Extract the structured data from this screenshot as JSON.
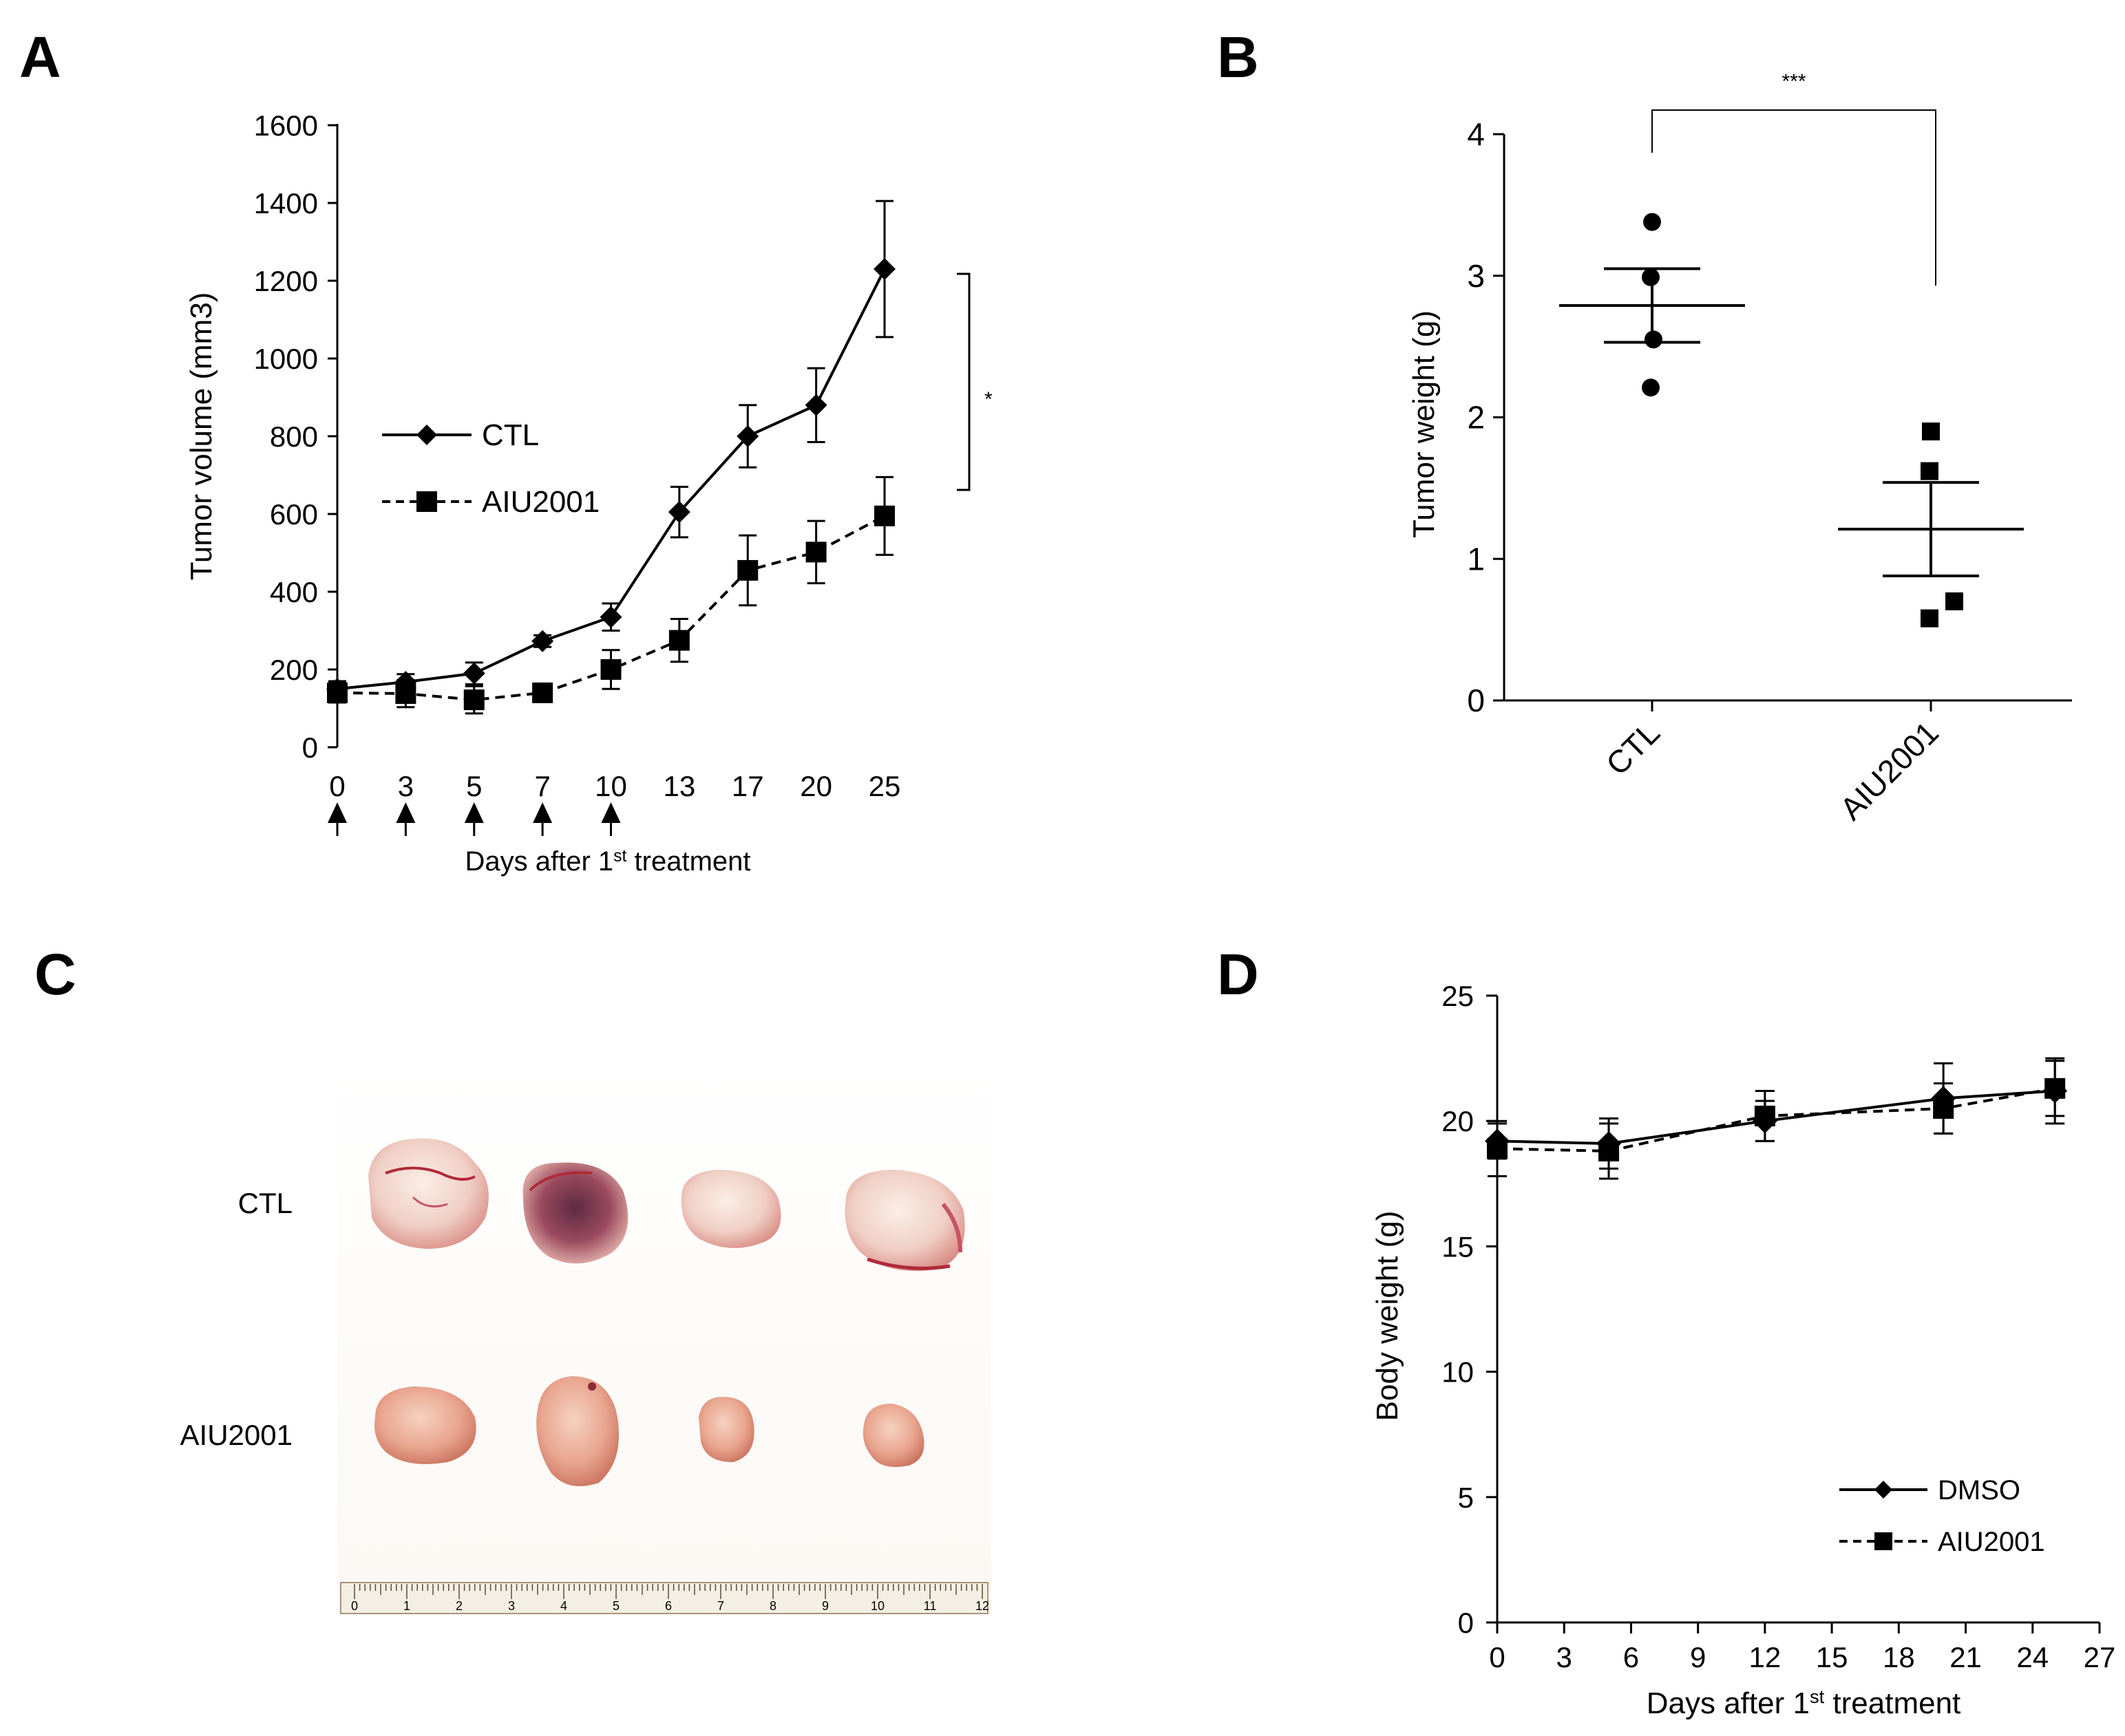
{
  "panels": {
    "A": "A",
    "B": "B",
    "C": "C",
    "D": "D"
  },
  "chart_data": [
    {
      "panel": "A",
      "type": "line",
      "x": [
        "0",
        "3",
        "5",
        "7",
        "10",
        "13",
        "17",
        "20",
        "25"
      ],
      "series": [
        {
          "name": "CTL",
          "marker": "diamond",
          "line": "solid",
          "values": [
            150,
            168,
            190,
            273,
            335,
            605,
            800,
            880,
            1230
          ],
          "errors": [
            20,
            20,
            28,
            15,
            35,
            65,
            80,
            95,
            175
          ]
        },
        {
          "name": "AIU2001",
          "marker": "square",
          "line": "dashed",
          "values": [
            140,
            138,
            122,
            140,
            200,
            275,
            455,
            502,
            595
          ],
          "errors": [
            25,
            35,
            35,
            20,
            50,
            55,
            90,
            80,
            100
          ]
        }
      ],
      "ylim": [
        0,
        1600
      ],
      "yticks": [
        0,
        200,
        400,
        600,
        800,
        1000,
        1200,
        1400,
        1600
      ],
      "ylabel": "Tumor volume (mm3)",
      "xlabel_prefix": "Days after 1",
      "xlabel_sup": "st",
      "xlabel_suffix": " treatment",
      "treatment_days": [
        "0",
        "3",
        "5",
        "7",
        "10"
      ],
      "significance": "*",
      "legend": [
        "CTL",
        "AIU2001"
      ]
    },
    {
      "panel": "B",
      "type": "scatter",
      "categories": [
        "CTL",
        "AIU2001"
      ],
      "points": [
        {
          "group": "CTL",
          "marker": "circle",
          "values": [
            3.38,
            2.99,
            2.55,
            2.21
          ]
        },
        {
          "group": "AIU2001",
          "marker": "square",
          "values": [
            1.9,
            1.62,
            0.7,
            0.58
          ]
        }
      ],
      "means": [
        2.79,
        1.21
      ],
      "sem": [
        0.26,
        0.33
      ],
      "ylim": [
        0,
        4
      ],
      "yticks": [
        0,
        1,
        2,
        3,
        4
      ],
      "ylabel": "Tumor weight (g)",
      "significance": "***"
    },
    {
      "panel": "D",
      "type": "line",
      "x": [
        0,
        5,
        12,
        20,
        25
      ],
      "series": [
        {
          "name": "DMSO",
          "marker": "diamond",
          "line": "solid",
          "values": [
            19.2,
            19.1,
            20.0,
            20.9,
            21.2
          ],
          "errors": [
            0.7,
            1.0,
            0.8,
            1.4,
            1.3
          ]
        },
        {
          "name": "AIU2001",
          "marker": "square",
          "line": "dashed",
          "values": [
            18.9,
            18.8,
            20.2,
            20.5,
            21.3
          ],
          "errors": [
            1.1,
            1.1,
            1.0,
            1.0,
            1.1
          ]
        }
      ],
      "xlim": [
        0,
        27
      ],
      "xticks": [
        0,
        3,
        6,
        9,
        12,
        15,
        18,
        21,
        24,
        27
      ],
      "ylim": [
        0,
        25
      ],
      "yticks": [
        0,
        5,
        10,
        15,
        20,
        25
      ],
      "ylabel": "Body weight (g)",
      "xlabel_prefix": "Days after 1",
      "xlabel_sup": "st",
      "xlabel_suffix": " treatment",
      "legend": [
        "DMSO",
        "AIU2001"
      ]
    }
  ],
  "photo": {
    "row_labels": [
      "CTL",
      "AIU2001"
    ],
    "ruler_numbers": [
      "0",
      "1",
      "2",
      "3",
      "4",
      "5",
      "6",
      "7",
      "8",
      "9",
      "10",
      "11",
      "12"
    ]
  },
  "colors": {
    "ink": "#000000",
    "ylabel_b": "#4a3b2c",
    "tumor_ctl": "#f0cfc4",
    "tumor_aiu": "#e9a58f",
    "blood": "#b02a3a",
    "ruler": "#c8b99a"
  }
}
